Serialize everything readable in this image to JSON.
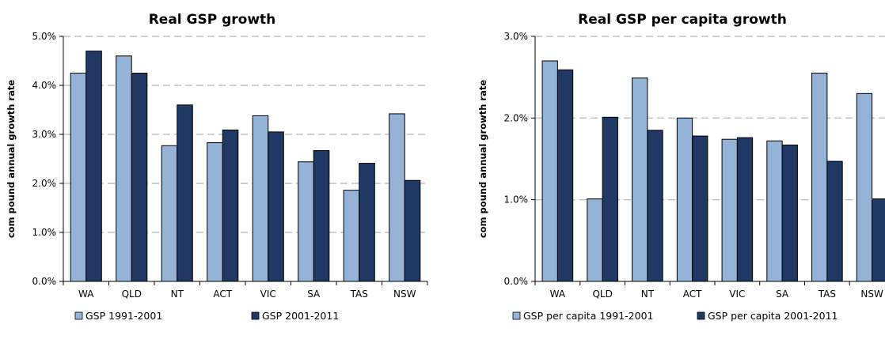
{
  "chart_data": [
    {
      "type": "bar",
      "title": "Real GSP growth",
      "ylabel": "com pound annual growth rate",
      "xlabel": "",
      "ylim": [
        0,
        5
      ],
      "yticks": [
        "0.0%",
        "1.0%",
        "2.0%",
        "3.0%",
        "4.0%",
        "5.0%"
      ],
      "grid": true,
      "legend_position": "bottom",
      "categories": [
        "WA",
        "QLD",
        "NT",
        "ACT",
        "VIC",
        "SA",
        "TAS",
        "NSW"
      ],
      "series": [
        {
          "name": "GSP 1991-2001",
          "color": "#95b3d7",
          "values": [
            4.25,
            4.6,
            2.77,
            2.83,
            3.38,
            2.44,
            1.86,
            3.42
          ]
        },
        {
          "name": "GSP 2001-2011",
          "color": "#1f3864",
          "values": [
            4.7,
            4.25,
            3.6,
            3.09,
            3.05,
            2.67,
            2.41,
            2.06
          ]
        }
      ]
    },
    {
      "type": "bar",
      "title": "Real GSP per capita growth",
      "ylabel": "com pound annual growth rate",
      "xlabel": "",
      "ylim": [
        0,
        3
      ],
      "yticks": [
        "0.0%",
        "1.0%",
        "2.0%",
        "3.0%"
      ],
      "grid": true,
      "legend_position": "bottom",
      "categories": [
        "WA",
        "QLD",
        "NT",
        "ACT",
        "VIC",
        "SA",
        "TAS",
        "NSW"
      ],
      "series": [
        {
          "name": "GSP per capita 1991-2001",
          "color": "#95b3d7",
          "values": [
            2.7,
            1.01,
            2.49,
            2.0,
            1.74,
            1.72,
            2.55,
            2.3
          ]
        },
        {
          "name": "GSP per capita 2001-2011",
          "color": "#1f3864",
          "values": [
            2.59,
            2.01,
            1.85,
            1.78,
            1.76,
            1.67,
            1.47,
            1.01
          ]
        }
      ]
    }
  ]
}
